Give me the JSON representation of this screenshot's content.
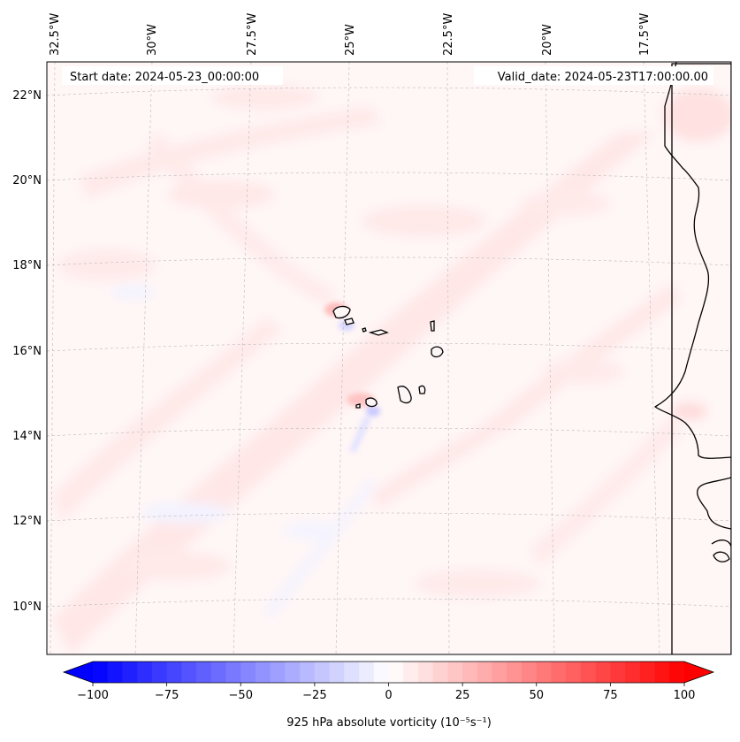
{
  "map": {
    "start_label": "Start date: 2024-05-23_00:00:00",
    "valid_label": "Valid_date: 2024-05-23T17:00:00.00",
    "top_lon_labels": [
      "32.5°W",
      "30°W",
      "27.5°W",
      "25°W",
      "22.5°W",
      "20°W",
      "17.5°W"
    ],
    "left_lat_labels": [
      "22°N",
      "20°N",
      "18°N",
      "16°N",
      "14°N",
      "12°N",
      "10°N"
    ]
  },
  "colorbar": {
    "label": "925 hPa absolute vorticity (10⁻⁵s⁻¹)",
    "ticks": [
      "−100",
      "−75",
      "−50",
      "−25",
      "0",
      "25",
      "50",
      "75",
      "100"
    ],
    "range": [
      -100,
      100
    ],
    "levels": 40,
    "colors": {
      "negative": "#0000ff",
      "zero": "#ffffff",
      "positive": "#ff0000"
    }
  }
}
